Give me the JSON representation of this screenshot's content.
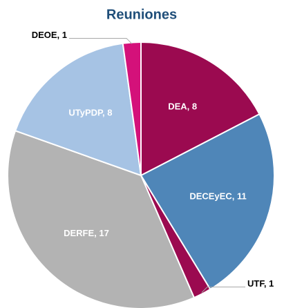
{
  "chart_data": {
    "type": "pie",
    "title": "Reuniones",
    "categories": [
      "DEA",
      "DECEyEC",
      "UTF",
      "DERFE",
      "UTyPDP",
      "DEOE"
    ],
    "values": [
      8,
      11,
      1,
      17,
      8,
      1
    ],
    "value_labels": [
      "DEA, 8",
      "DECEyEC, 11",
      "UTF, 1",
      "DERFE, 17",
      "UTyPDP, 8",
      "DEOE, 1"
    ],
    "colors": [
      "#9b0a50",
      "#4f86b8",
      "#9b0a50",
      "#b3b3b3",
      "#a6c3e4",
      "#d4117a"
    ]
  }
}
